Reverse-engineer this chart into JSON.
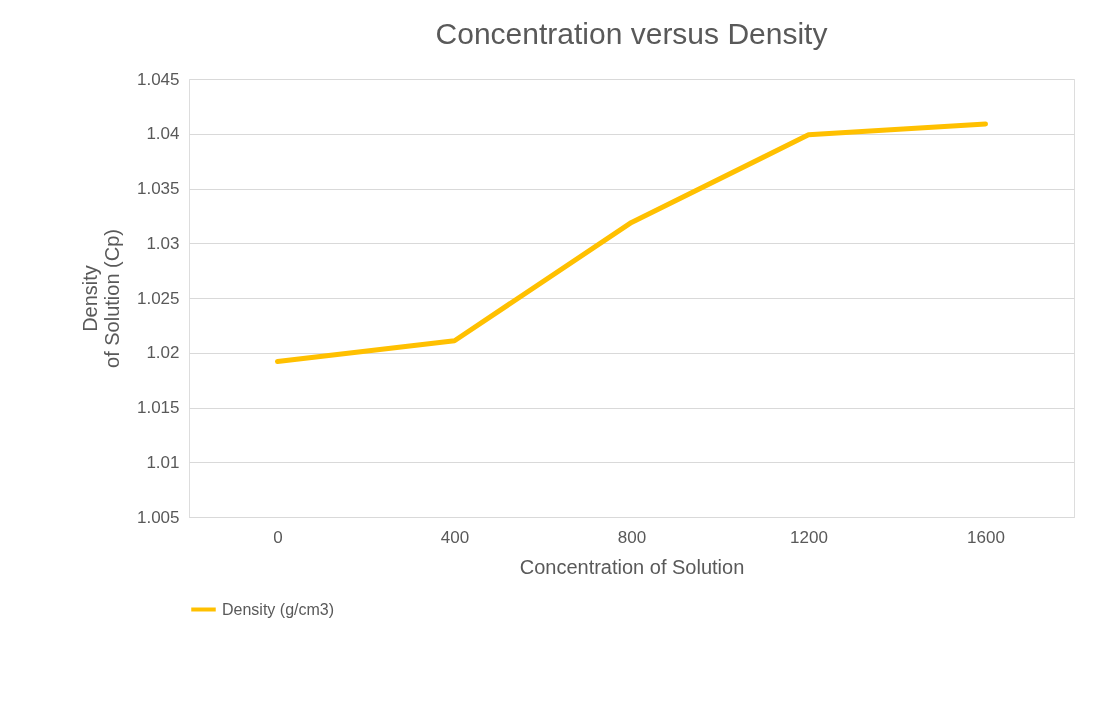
{
  "chart_data": {
    "type": "line",
    "title": "Concentration versus Density",
    "xlabel": "Concentration of Solution",
    "ylabel": "Density\nof Solution (Cp)",
    "categories": [
      "0",
      "400",
      "800",
      "1200",
      "1600"
    ],
    "series": [
      {
        "name": "Density (g/cm3)",
        "color": "#ffc000",
        "values": [
          1.0192,
          1.0211,
          1.0319,
          1.0399,
          1.0409
        ]
      }
    ],
    "ylim": [
      1.005,
      1.045
    ],
    "yticks": [
      1.005,
      1.01,
      1.015,
      1.02,
      1.025,
      1.03,
      1.035,
      1.04,
      1.045
    ],
    "grid": "y",
    "legend": "bottom",
    "marker": "none",
    "line_style": "solid"
  }
}
